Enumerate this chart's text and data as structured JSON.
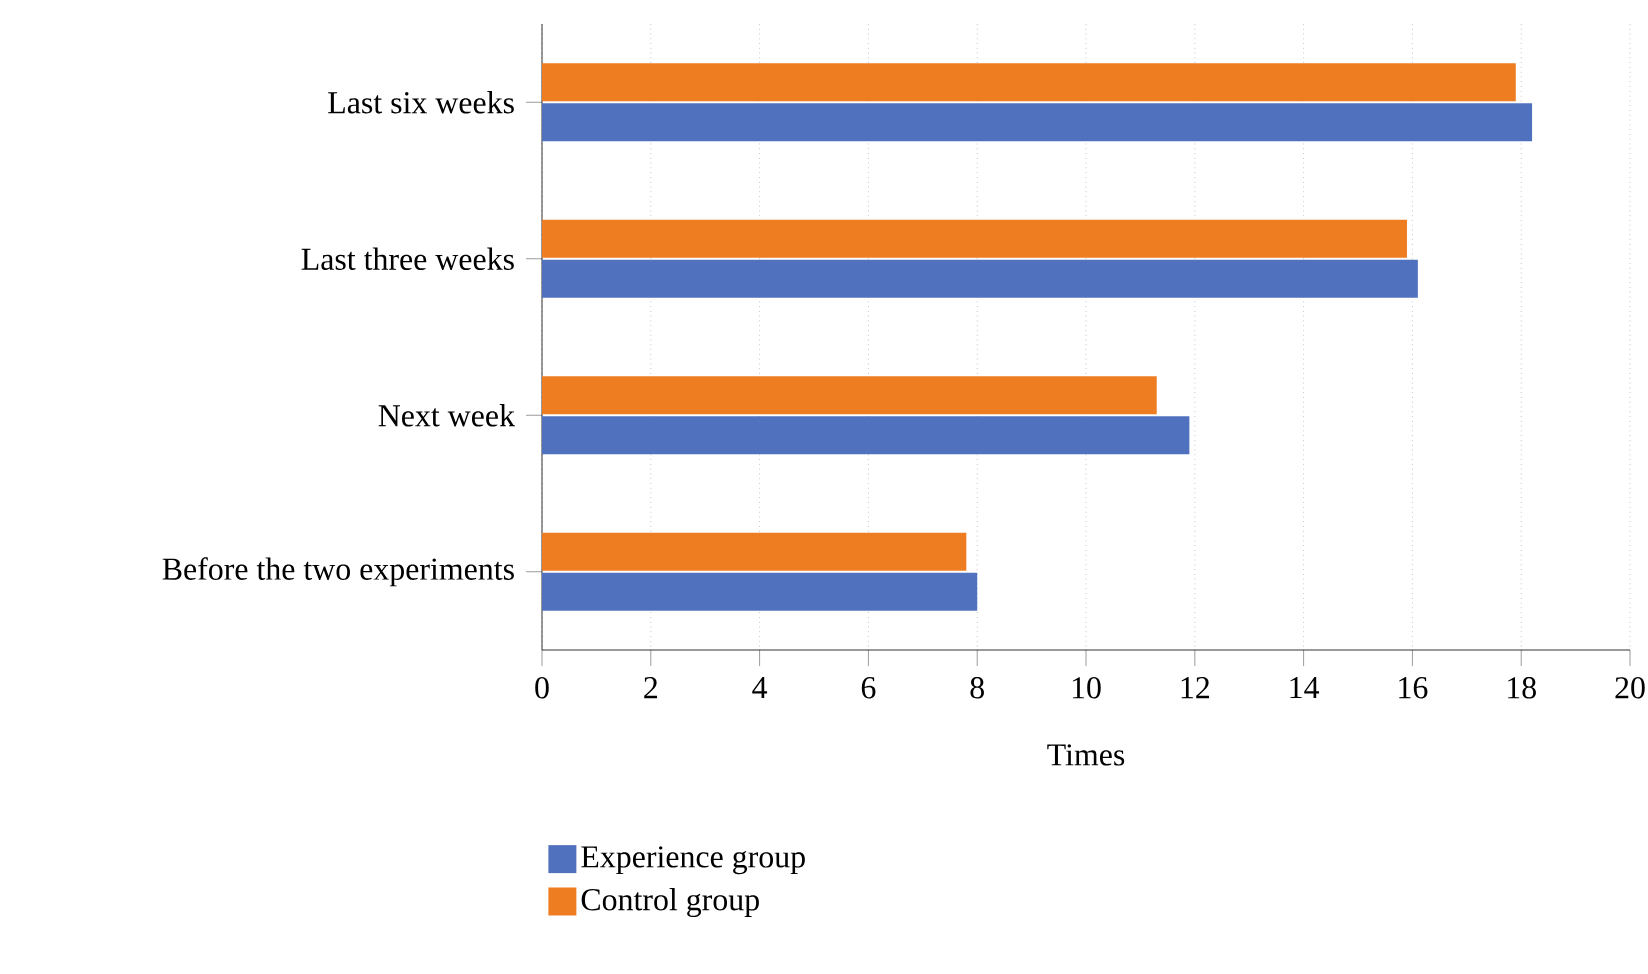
{
  "chart_data": {
    "type": "bar",
    "orientation": "horizontal",
    "xlabel": "Times",
    "categories": [
      "Last six weeks",
      "Last three weeks",
      "Next week",
      "Before the two experiments"
    ],
    "series": [
      {
        "name": "Experience group",
        "color": "#5072be",
        "values": [
          18.2,
          16.1,
          11.9,
          8.0
        ]
      },
      {
        "name": "Control group",
        "color": "#ee7d22",
        "values": [
          17.9,
          15.9,
          11.3,
          7.8
        ]
      }
    ],
    "xlim": [
      0,
      20
    ],
    "xticks": [
      0,
      2,
      4,
      6,
      8,
      10,
      12,
      14,
      16,
      18,
      20
    ],
    "grid": "x",
    "legend": "bottom"
  }
}
